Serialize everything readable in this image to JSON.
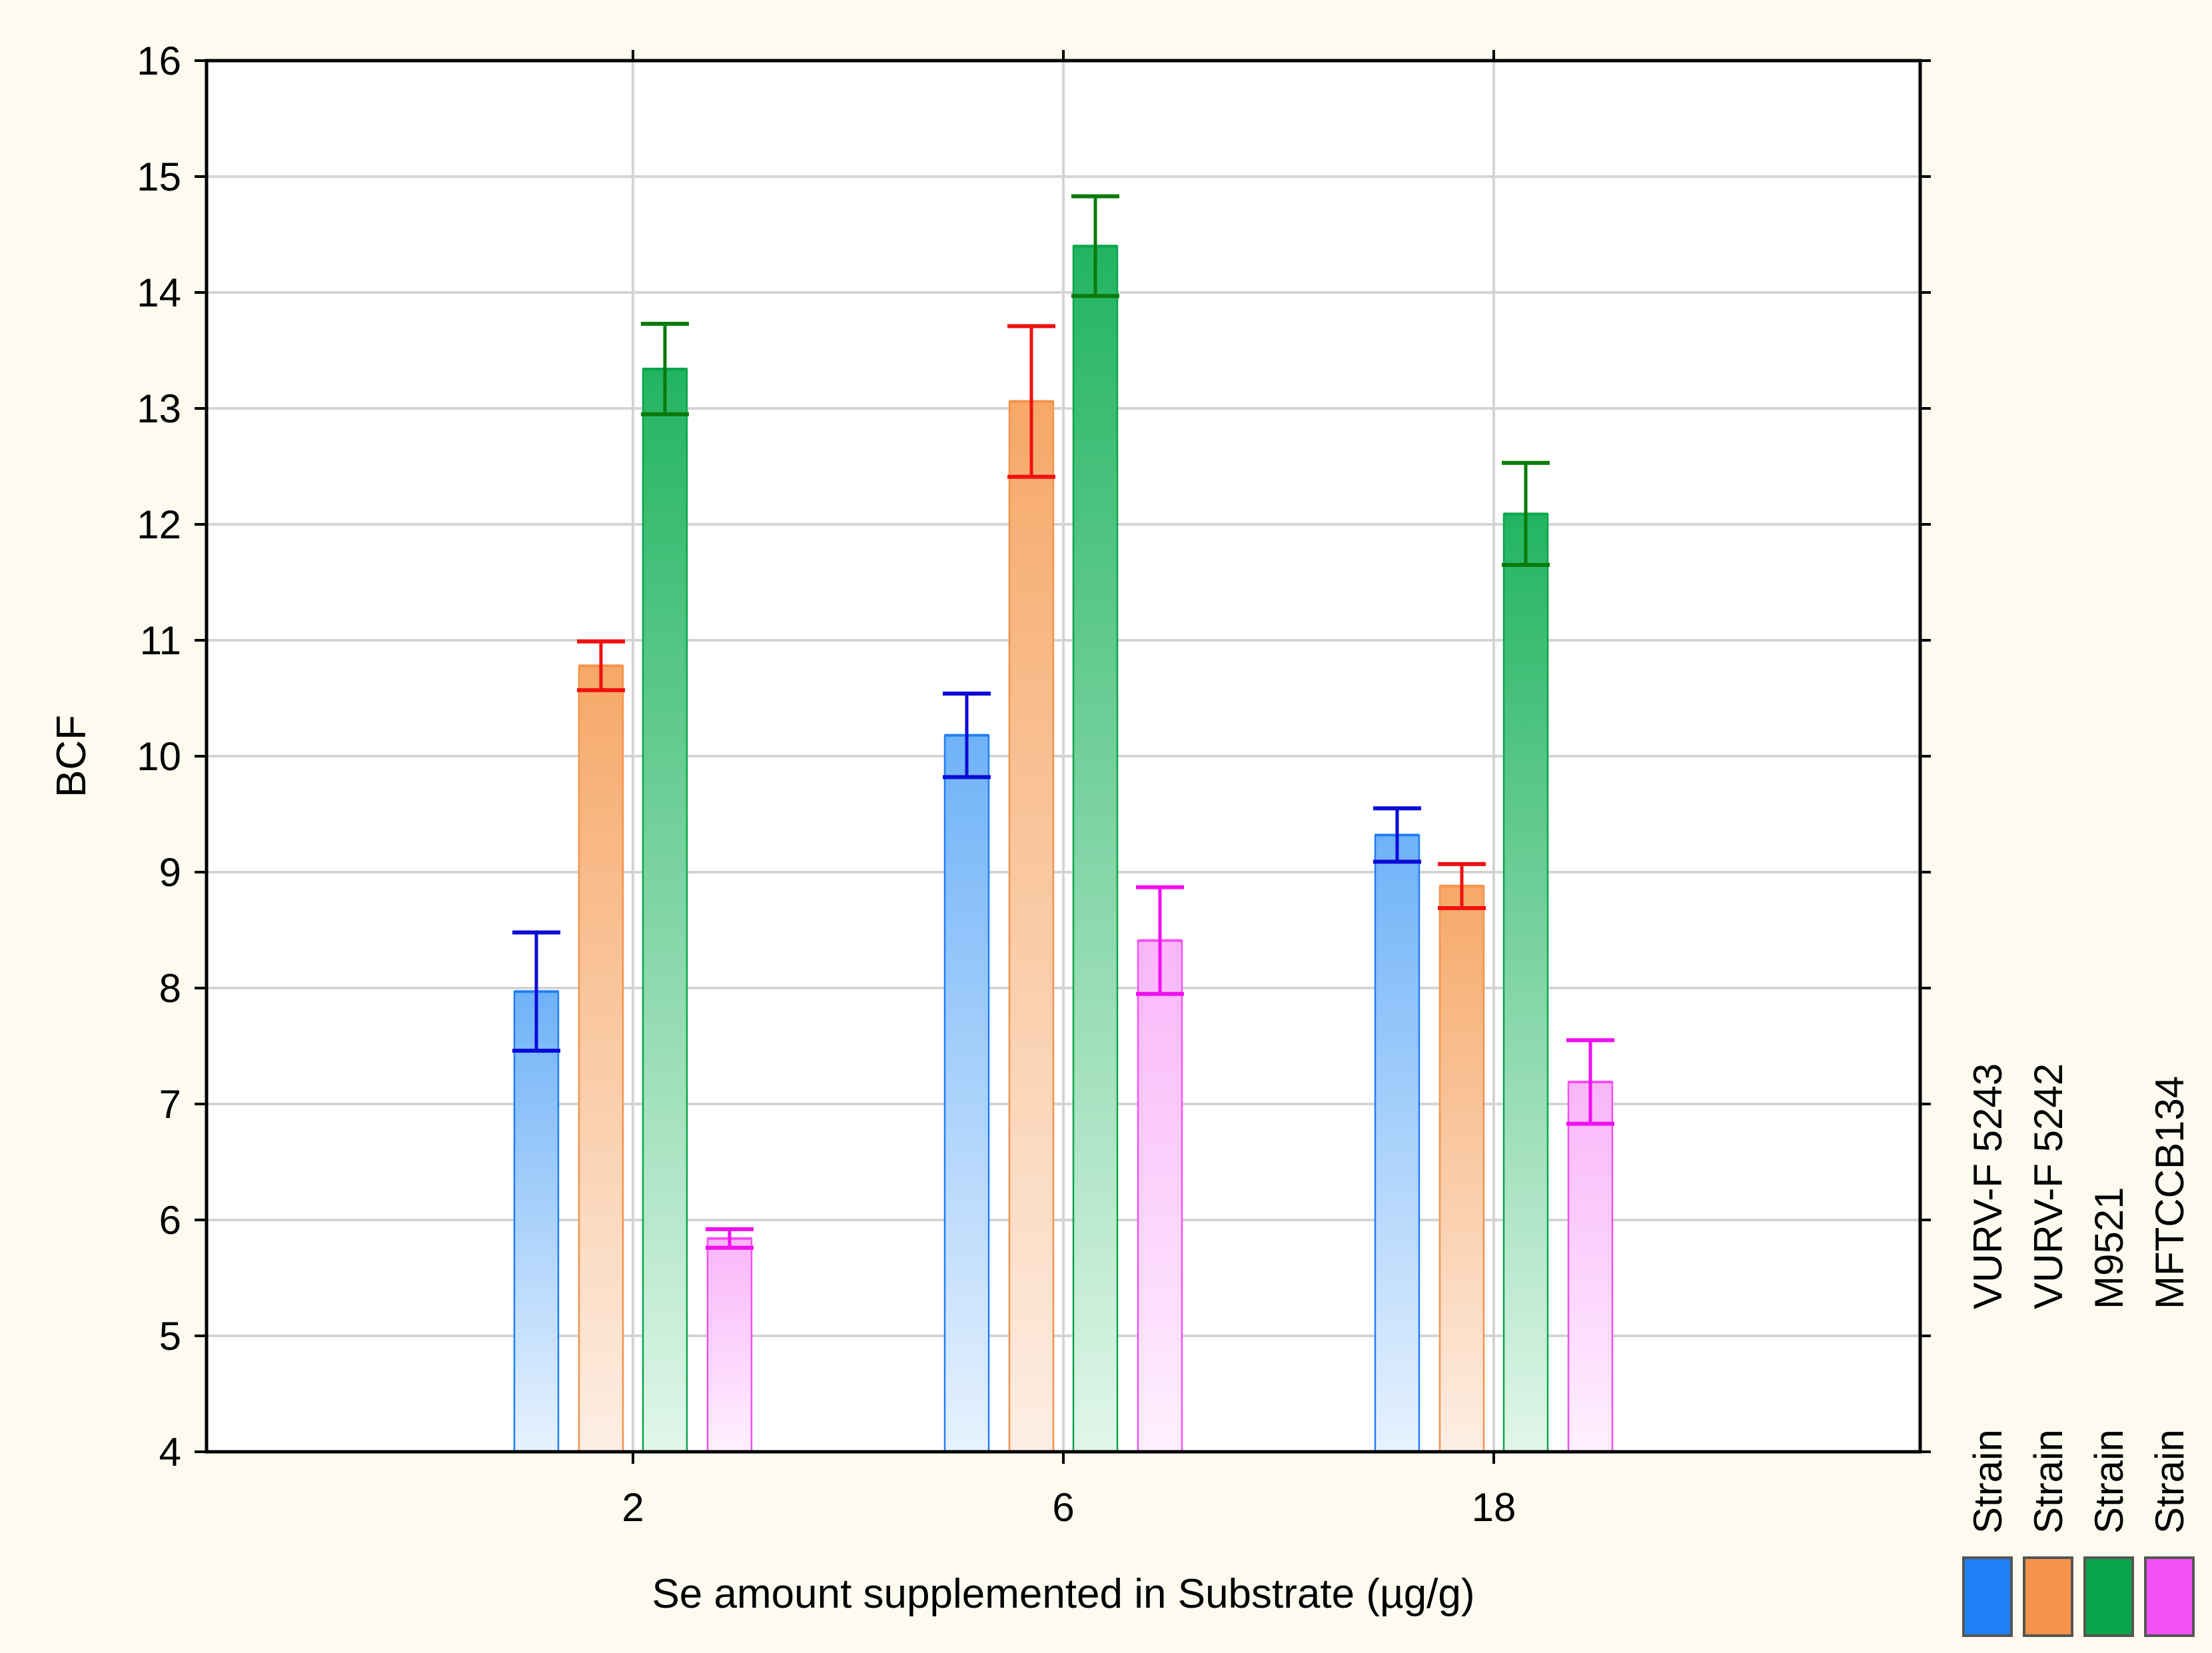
{
  "chart_data": {
    "type": "bar",
    "title": "",
    "xlabel": "Se amount supplemented in Substrate (µg/g)",
    "ylabel": "BCF",
    "ylim": [
      4,
      16
    ],
    "yticks": [
      "4",
      "5",
      "6",
      "7",
      "8",
      "9",
      "10",
      "11",
      "12",
      "13",
      "14",
      "15",
      "16"
    ],
    "categories": [
      "2",
      "6",
      "18"
    ],
    "grid": true,
    "legend_position": "right",
    "series": [
      {
        "name": "Strain VURV-F 5243",
        "legend_prefix": "Strain",
        "legend_label": "VURV-F 5243",
        "color": "#1f7ff5",
        "fill_top": "#6fb2f8",
        "fill_bottom": "#e7f2fe",
        "error_color": "#0b0bd6",
        "values": [
          7.97,
          10.18,
          9.32
        ],
        "errors": [
          0.51,
          0.36,
          0.23
        ]
      },
      {
        "name": "Strain VURV-F 5242",
        "legend_prefix": "Strain",
        "legend_label": "VURV-F 5242",
        "color": "#f5924b",
        "fill_top": "#f6a868",
        "fill_bottom": "#fdeee4",
        "error_color": "#f01010",
        "values": [
          10.78,
          13.06,
          8.88
        ],
        "errors": [
          0.21,
          0.65,
          0.19
        ]
      },
      {
        "name": "Strain M9521",
        "legend_prefix": "Strain",
        "legend_label": "M9521",
        "color": "#0aa54a",
        "fill_top": "#22b461",
        "fill_bottom": "#e1f6ea",
        "error_color": "#0a7a0a",
        "values": [
          13.34,
          14.4,
          12.09
        ],
        "errors": [
          0.39,
          0.43,
          0.44
        ]
      },
      {
        "name": "Strain MFTCCB134",
        "legend_prefix": "Strain",
        "legend_label": "MFTCCB134",
        "color": "#f550f5",
        "fill_top": "#f9b6f9",
        "fill_bottom": "#fff0ff",
        "error_color": "#f010f0",
        "values": [
          5.84,
          8.41,
          7.19
        ],
        "errors": [
          0.08,
          0.46,
          0.36
        ]
      }
    ]
  }
}
